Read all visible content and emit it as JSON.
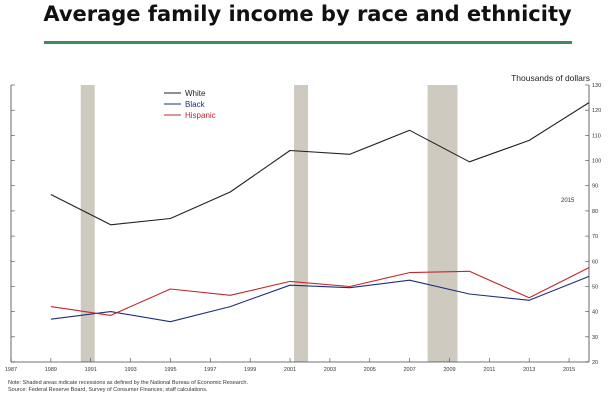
{
  "title": "Average family income by race and ethnicity",
  "units_label": "Thousands of dollars",
  "note_line1": "Note: Shaded areas indicate recessions as defined by the National Bureau of Economic Research.",
  "note_line2": "Source: Federal Reserve Board, Survey of Consumer Finances; staff calculations.",
  "chart_data": {
    "type": "line",
    "title": "Average family income by race and ethnicity",
    "ylabel": "Thousands of dollars",
    "xlim": [
      1987,
      2016
    ],
    "ylim": [
      20,
      130
    ],
    "yticks": [
      20,
      30,
      40,
      50,
      60,
      70,
      80,
      90,
      100,
      110,
      120,
      130
    ],
    "xticks": [
      "1987",
      "1989",
      "1991",
      "1993",
      "1995",
      "1997",
      "1999",
      "2001",
      "2003",
      "2005",
      "2007",
      "2009",
      "2011",
      "2013",
      "2015"
    ],
    "x": [
      1989,
      1992,
      1995,
      1998,
      2001,
      2004,
      2007,
      2010,
      2013,
      2016
    ],
    "series": [
      {
        "name": "White",
        "color": "#222222",
        "values": [
          86.5,
          74.5,
          77,
          87.5,
          104,
          102.5,
          112,
          99.5,
          108,
          123
        ]
      },
      {
        "name": "Black",
        "color": "#1f2f7a",
        "values": [
          37,
          40,
          36,
          42,
          50.5,
          49.5,
          52.5,
          47,
          44.5,
          54
        ]
      },
      {
        "name": "Hispanic",
        "color": "#c0282d",
        "values": [
          42,
          38.5,
          49,
          46.5,
          52,
          50,
          55.5,
          56,
          45.5,
          57.5
        ]
      }
    ],
    "recessions": [
      [
        1990.5,
        1991.2
      ],
      [
        2001.2,
        2001.9
      ],
      [
        2007.9,
        2009.4
      ]
    ],
    "recession_color": "#cfcac0",
    "annotations": [
      "2015"
    ],
    "legend_position": "top-left",
    "grid": false
  }
}
